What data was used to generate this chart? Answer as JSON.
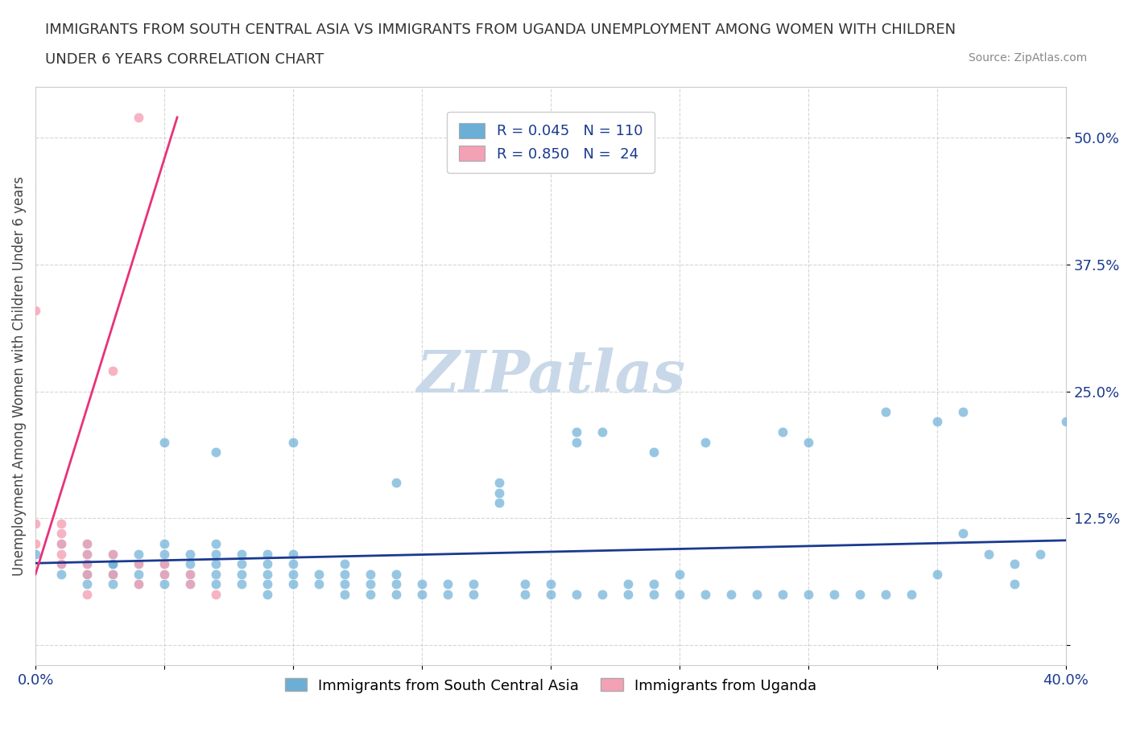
{
  "title_line1": "IMMIGRANTS FROM SOUTH CENTRAL ASIA VS IMMIGRANTS FROM UGANDA UNEMPLOYMENT AMONG WOMEN WITH CHILDREN",
  "title_line2": "UNDER 6 YEARS CORRELATION CHART",
  "source": "Source: ZipAtlas.com",
  "ylabel": "Unemployment Among Women with Children Under 6 years",
  "xlim": [
    0.0,
    0.4
  ],
  "ylim": [
    -0.02,
    0.55
  ],
  "xticks": [
    0.0,
    0.05,
    0.1,
    0.15,
    0.2,
    0.25,
    0.3,
    0.35,
    0.4
  ],
  "xticklabels": [
    "0.0%",
    "",
    "",
    "",
    "",
    "",
    "",
    "",
    "40.0%"
  ],
  "yticks": [
    0.0,
    0.125,
    0.25,
    0.375,
    0.5
  ],
  "yticklabels": [
    "",
    "12.5%",
    "25.0%",
    "37.5%",
    "50.0%"
  ],
  "color_blue": "#6baed6",
  "color_pink": "#f4a0b5",
  "trendline_blue": "#1a3a8f",
  "trendline_pink": "#e8327a",
  "R_blue": 0.045,
  "N_blue": 110,
  "R_pink": 0.85,
  "N_pink": 24,
  "legend_label_blue": "Immigrants from South Central Asia",
  "legend_label_pink": "Immigrants from Uganda",
  "watermark": "ZIPatlas",
  "watermark_color": "#c8d8e8",
  "blue_scatter_x": [
    0.0,
    0.01,
    0.01,
    0.01,
    0.02,
    0.02,
    0.02,
    0.02,
    0.02,
    0.02,
    0.03,
    0.03,
    0.03,
    0.03,
    0.03,
    0.03,
    0.04,
    0.04,
    0.04,
    0.04,
    0.05,
    0.05,
    0.05,
    0.05,
    0.05,
    0.06,
    0.06,
    0.06,
    0.06,
    0.07,
    0.07,
    0.07,
    0.07,
    0.07,
    0.08,
    0.08,
    0.08,
    0.08,
    0.09,
    0.09,
    0.09,
    0.09,
    0.09,
    0.1,
    0.1,
    0.1,
    0.1,
    0.11,
    0.11,
    0.12,
    0.12,
    0.12,
    0.12,
    0.13,
    0.13,
    0.13,
    0.14,
    0.14,
    0.14,
    0.15,
    0.15,
    0.16,
    0.16,
    0.17,
    0.17,
    0.18,
    0.18,
    0.18,
    0.19,
    0.19,
    0.2,
    0.2,
    0.21,
    0.21,
    0.22,
    0.22,
    0.23,
    0.23,
    0.24,
    0.24,
    0.25,
    0.25,
    0.26,
    0.27,
    0.28,
    0.29,
    0.3,
    0.31,
    0.32,
    0.33,
    0.33,
    0.34,
    0.35,
    0.36,
    0.37,
    0.38,
    0.38,
    0.39,
    0.4,
    0.35,
    0.24,
    0.26,
    0.29,
    0.3,
    0.21,
    0.14,
    0.05,
    0.07,
    0.1,
    0.36
  ],
  "blue_scatter_y": [
    0.09,
    0.07,
    0.08,
    0.1,
    0.07,
    0.09,
    0.08,
    0.1,
    0.06,
    0.07,
    0.07,
    0.08,
    0.09,
    0.06,
    0.07,
    0.08,
    0.06,
    0.07,
    0.08,
    0.09,
    0.06,
    0.08,
    0.09,
    0.07,
    0.1,
    0.07,
    0.08,
    0.06,
    0.09,
    0.07,
    0.06,
    0.08,
    0.09,
    0.1,
    0.06,
    0.07,
    0.08,
    0.09,
    0.06,
    0.07,
    0.08,
    0.09,
    0.05,
    0.06,
    0.07,
    0.08,
    0.09,
    0.06,
    0.07,
    0.05,
    0.06,
    0.07,
    0.08,
    0.05,
    0.06,
    0.07,
    0.05,
    0.06,
    0.07,
    0.05,
    0.06,
    0.05,
    0.06,
    0.05,
    0.06,
    0.14,
    0.15,
    0.16,
    0.05,
    0.06,
    0.05,
    0.06,
    0.05,
    0.2,
    0.05,
    0.21,
    0.05,
    0.06,
    0.05,
    0.06,
    0.05,
    0.07,
    0.05,
    0.05,
    0.05,
    0.05,
    0.05,
    0.05,
    0.05,
    0.05,
    0.23,
    0.05,
    0.22,
    0.11,
    0.09,
    0.06,
    0.08,
    0.09,
    0.22,
    0.07,
    0.19,
    0.2,
    0.21,
    0.2,
    0.21,
    0.16,
    0.2,
    0.19,
    0.2,
    0.23
  ],
  "pink_scatter_x": [
    0.0,
    0.0,
    0.0,
    0.01,
    0.01,
    0.01,
    0.01,
    0.01,
    0.02,
    0.02,
    0.02,
    0.02,
    0.02,
    0.03,
    0.03,
    0.03,
    0.04,
    0.04,
    0.04,
    0.05,
    0.05,
    0.06,
    0.06,
    0.07
  ],
  "pink_scatter_y": [
    0.1,
    0.33,
    0.12,
    0.08,
    0.09,
    0.1,
    0.11,
    0.12,
    0.07,
    0.08,
    0.09,
    0.1,
    0.05,
    0.07,
    0.09,
    0.27,
    0.08,
    0.52,
    0.06,
    0.07,
    0.08,
    0.06,
    0.07,
    0.05
  ]
}
